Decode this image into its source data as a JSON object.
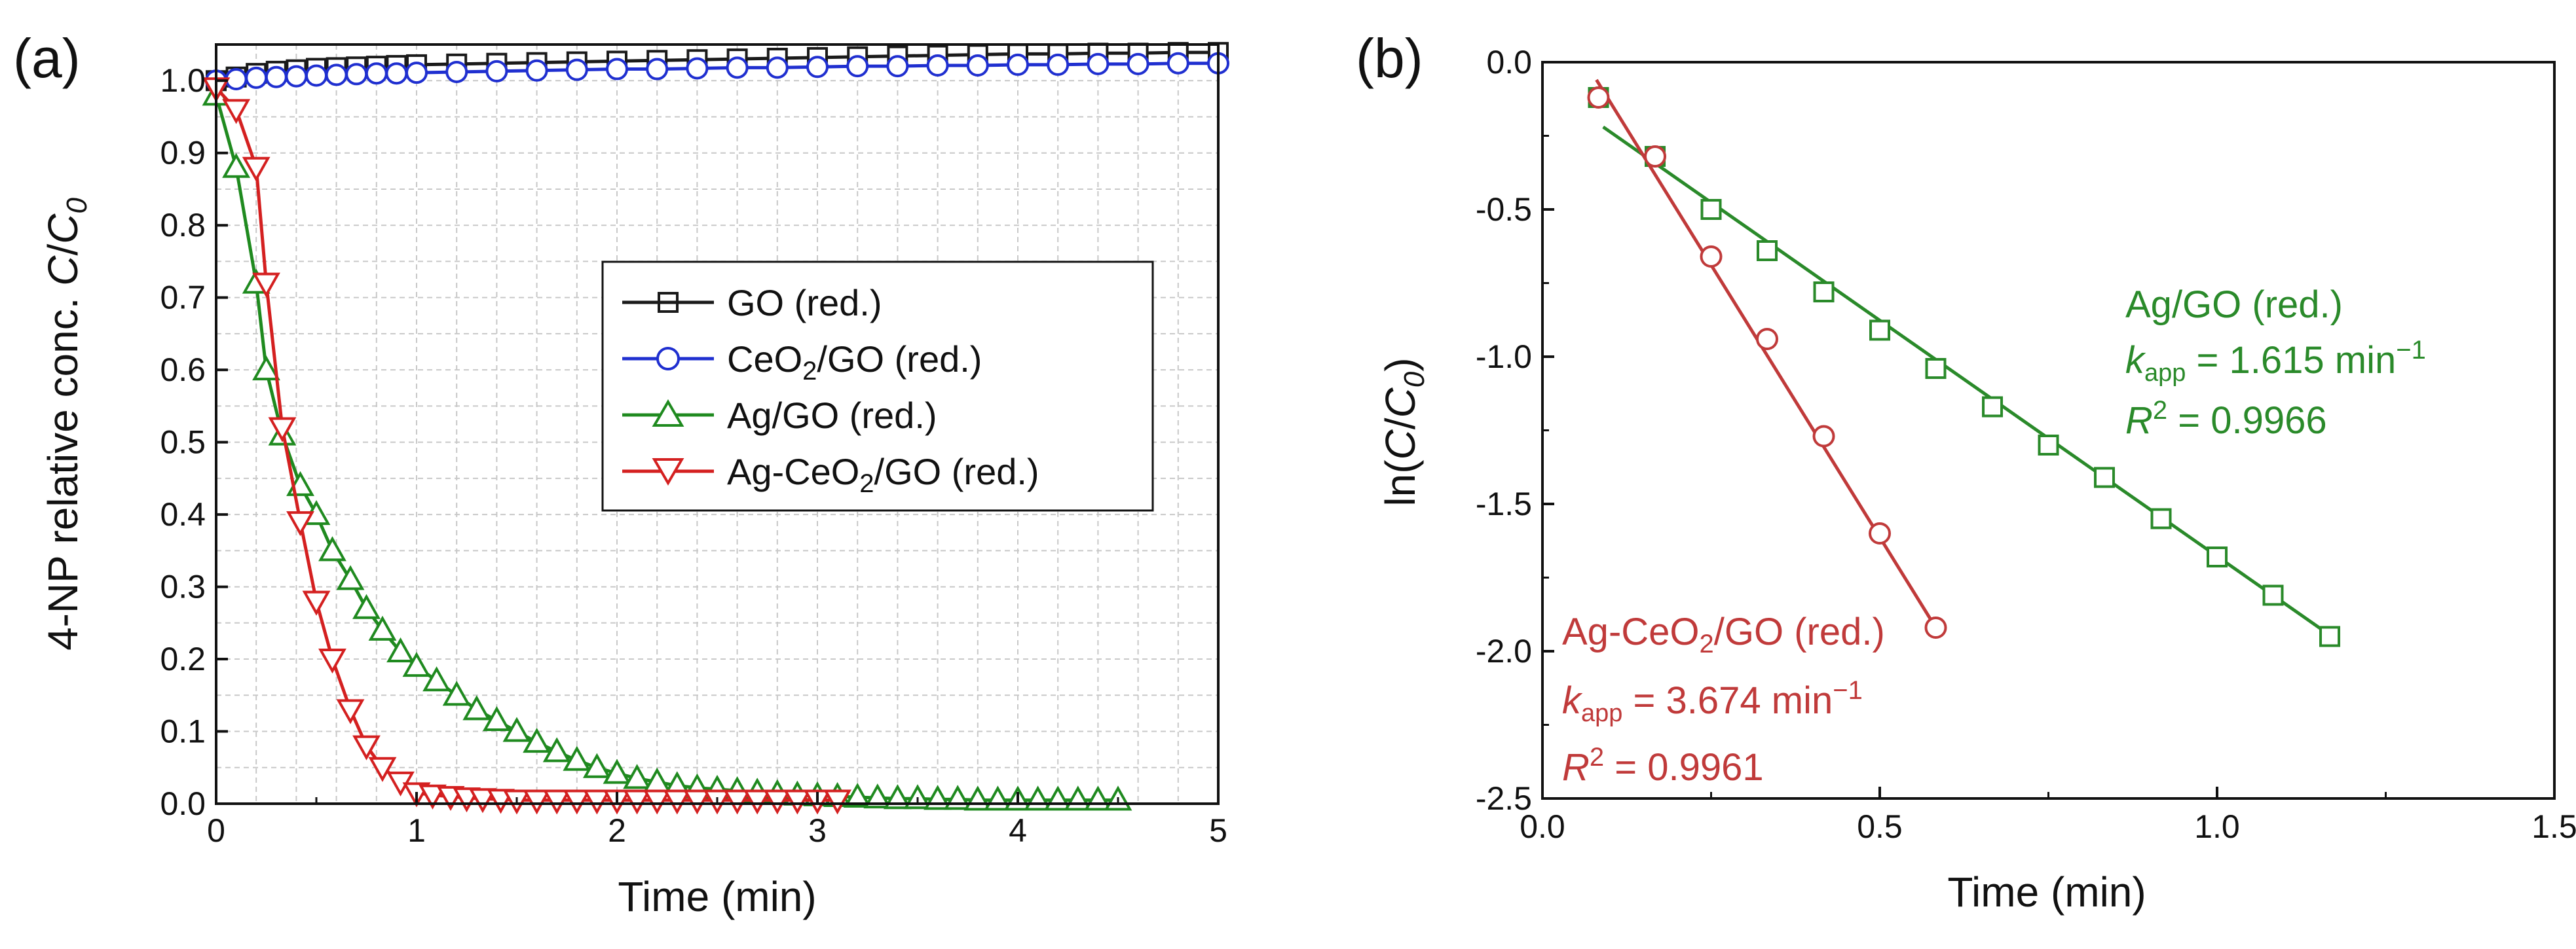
{
  "chart_data": [
    {
      "type": "line",
      "panel_label": "(a)",
      "xlabel": "Time (min)",
      "ylabel_prefix": "4-NP relative conc. ",
      "ylabel_var": "C",
      "ylabel_sep": "/",
      "ylabel_var0": "C",
      "ylabel_sub": "0",
      "xlim": [
        0,
        5
      ],
      "ylim": [
        0,
        1.05
      ],
      "xticks": [
        "0",
        "1",
        "2",
        "3",
        "4",
        "5"
      ],
      "yticks": [
        "0.0",
        "0.1",
        "0.2",
        "0.3",
        "0.4",
        "0.5",
        "0.6",
        "0.7",
        "0.8",
        "0.9",
        "1.0"
      ],
      "grid": true,
      "legend_position": "center-right",
      "legend": [
        {
          "label_a": "GO (red.)",
          "label_sub": "",
          "label_b": ""
        },
        {
          "label_a": "CeO",
          "label_sub": "2",
          "label_b": "/GO (red.)"
        },
        {
          "label_a": "Ag/GO (red.)",
          "label_sub": "",
          "label_b": ""
        },
        {
          "label_a": "Ag-CeO",
          "label_sub": "2",
          "label_b": "/GO (red.)"
        }
      ],
      "series": [
        {
          "name": "GO (red.)",
          "color": "#1a1a1a",
          "marker": "square",
          "x": [
            0,
            0.1,
            0.2,
            0.3,
            0.4,
            0.5,
            0.6,
            0.7,
            0.8,
            0.9,
            1.0,
            1.2,
            1.4,
            1.6,
            1.8,
            2.0,
            2.2,
            2.4,
            2.6,
            2.8,
            3.0,
            3.2,
            3.4,
            3.6,
            3.8,
            4.0,
            4.2,
            4.4,
            4.6,
            4.8,
            5.0
          ],
          "y": [
            1.0,
            1.005,
            1.01,
            1.013,
            1.015,
            1.017,
            1.018,
            1.019,
            1.02,
            1.021,
            1.022,
            1.023,
            1.024,
            1.025,
            1.026,
            1.027,
            1.028,
            1.029,
            1.03,
            1.031,
            1.032,
            1.033,
            1.034,
            1.035,
            1.036,
            1.037,
            1.037,
            1.038,
            1.038,
            1.039,
            1.039
          ]
        },
        {
          "name": "CeO2/GO (red.)",
          "color": "#1f2fd0",
          "marker": "circle",
          "x": [
            0,
            0.1,
            0.2,
            0.3,
            0.4,
            0.5,
            0.6,
            0.7,
            0.8,
            0.9,
            1.0,
            1.2,
            1.4,
            1.6,
            1.8,
            2.0,
            2.2,
            2.4,
            2.6,
            2.8,
            3.0,
            3.2,
            3.4,
            3.6,
            3.8,
            4.0,
            4.2,
            4.4,
            4.6,
            4.8,
            5.0
          ],
          "y": [
            1.0,
            1.002,
            1.004,
            1.005,
            1.006,
            1.007,
            1.008,
            1.009,
            1.01,
            1.01,
            1.011,
            1.012,
            1.013,
            1.014,
            1.015,
            1.016,
            1.016,
            1.017,
            1.018,
            1.018,
            1.019,
            1.02,
            1.02,
            1.021,
            1.021,
            1.022,
            1.022,
            1.023,
            1.023,
            1.024,
            1.024
          ]
        },
        {
          "name": "Ag/GO (red.)",
          "color": "#1f8a1f",
          "marker": "triangle-up",
          "x": [
            0,
            0.1,
            0.2,
            0.25,
            0.33,
            0.42,
            0.5,
            0.58,
            0.67,
            0.75,
            0.83,
            0.92,
            1.0,
            1.1,
            1.2,
            1.3,
            1.4,
            1.5,
            1.6,
            1.7,
            1.8,
            1.9,
            2.0,
            2.1,
            2.2,
            2.3,
            2.4,
            2.5,
            2.6,
            2.7,
            2.8,
            2.9,
            3.0,
            3.1,
            3.2,
            3.3,
            3.4,
            3.5,
            3.6,
            3.7,
            3.8,
            3.9,
            4.0,
            4.1,
            4.2,
            4.3,
            4.4,
            4.5
          ],
          "y": [
            0.98,
            0.88,
            0.72,
            0.6,
            0.51,
            0.44,
            0.4,
            0.35,
            0.31,
            0.27,
            0.24,
            0.21,
            0.19,
            0.17,
            0.15,
            0.13,
            0.115,
            0.1,
            0.085,
            0.072,
            0.06,
            0.05,
            0.042,
            0.035,
            0.03,
            0.025,
            0.022,
            0.02,
            0.018,
            0.016,
            0.014,
            0.012,
            0.011,
            0.01,
            0.009,
            0.008,
            0.007,
            0.007,
            0.006,
            0.006,
            0.005,
            0.005,
            0.005,
            0.005,
            0.005,
            0.005,
            0.005,
            0.005
          ]
        },
        {
          "name": "Ag-CeO2/GO (red.)",
          "color": "#d42020",
          "marker": "triangle-down",
          "x": [
            0,
            0.1,
            0.2,
            0.25,
            0.33,
            0.42,
            0.5,
            0.58,
            0.67,
            0.75,
            0.83,
            0.92,
            1.0,
            1.08,
            1.17,
            1.25,
            1.33,
            1.42,
            1.5,
            1.6,
            1.7,
            1.8,
            1.9,
            2.0,
            2.1,
            2.2,
            2.3,
            2.4,
            2.5,
            2.6,
            2.7,
            2.8,
            2.9,
            3.0,
            3.1
          ],
          "y": [
            0.99,
            0.96,
            0.88,
            0.72,
            0.52,
            0.39,
            0.28,
            0.2,
            0.13,
            0.08,
            0.05,
            0.03,
            0.015,
            0.012,
            0.01,
            0.008,
            0.007,
            0.006,
            0.005,
            0.005,
            0.005,
            0.005,
            0.005,
            0.005,
            0.005,
            0.005,
            0.005,
            0.005,
            0.005,
            0.005,
            0.005,
            0.005,
            0.005,
            0.005,
            0.005
          ]
        }
      ]
    },
    {
      "type": "scatter",
      "panel_label": "(b)",
      "xlabel": "Time (min)",
      "ylabel_prefix": "ln(",
      "ylabel_var": "C",
      "ylabel_sep": "/",
      "ylabel_var0": "C",
      "ylabel_sub": "0",
      "ylabel_suffix": ")",
      "xlim": [
        0,
        1.5
      ],
      "ylim": [
        -2.5,
        0
      ],
      "xticks": [
        "0.0",
        "0.5",
        "1.0",
        "1.5"
      ],
      "yticks": [
        "0.0",
        "-0.5",
        "-1.0",
        "-1.5",
        "-2.0",
        "-2.5"
      ],
      "grid": false,
      "series": [
        {
          "name": "Ag/GO (red.)",
          "color": "#2a8a2a",
          "marker": "square",
          "x": [
            0.083,
            0.167,
            0.25,
            0.333,
            0.417,
            0.5,
            0.583,
            0.667,
            0.75,
            0.833,
            0.917,
            1.0,
            1.083,
            1.167
          ],
          "y": [
            -0.12,
            -0.32,
            -0.5,
            -0.64,
            -0.78,
            -0.91,
            -1.04,
            -1.17,
            -1.3,
            -1.41,
            -1.55,
            -1.68,
            -1.81,
            -1.95
          ],
          "fit": {
            "x": [
              0.09,
              1.17
            ],
            "y": [
              -0.22,
              -1.95
            ]
          },
          "annotation": {
            "name": "Ag/GO (red.)",
            "k_sym": "k",
            "k_sub": "app",
            "k_val": " = 1.615 min",
            "k_exp": "−1",
            "r_sym": "R",
            "r_exp": "2",
            "r_val": " = 0.9966"
          }
        },
        {
          "name": "Ag-CeO2/GO (red.)",
          "color": "#c03a3a",
          "marker": "circle",
          "x": [
            0.083,
            0.167,
            0.25,
            0.333,
            0.417,
            0.5,
            0.583
          ],
          "y": [
            -0.12,
            -0.32,
            -0.66,
            -0.94,
            -1.27,
            -1.6,
            -1.92
          ],
          "fit": {
            "x": [
              0.08,
              0.583
            ],
            "y": [
              -0.06,
              -1.92
            ]
          },
          "annotation": {
            "name_a": "Ag-CeO",
            "name_sub": "2",
            "name_b": "/GO (red.)",
            "k_sym": "k",
            "k_sub": "app",
            "k_val": " = 3.674 min",
            "k_exp": "−1",
            "r_sym": "R",
            "r_exp": "2",
            "r_val": " = 0.9961"
          }
        }
      ]
    }
  ]
}
